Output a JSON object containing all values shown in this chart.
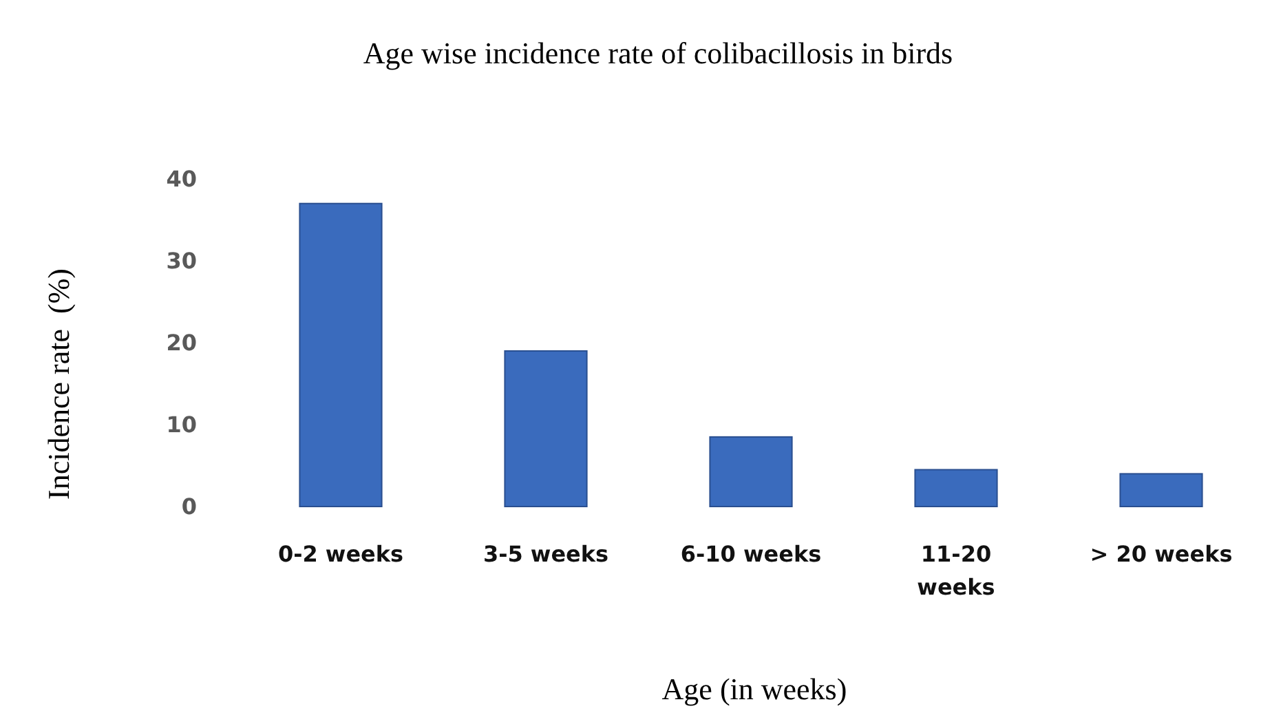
{
  "chart_data": {
    "type": "bar",
    "title": "Age wise incidence rate of colibacillosis in birds",
    "xlabel": "Age (in weeks)",
    "ylabel": "Incidence rate  (%)",
    "categories": [
      "0-2 weeks",
      "3-5 weeks",
      "6-10 weeks",
      "11-20 weeks",
      "> 20 weeks"
    ],
    "values": [
      37,
      19,
      8.5,
      4.5,
      4
    ],
    "color": "#3a6bbd",
    "ylim": [
      0,
      40
    ],
    "yticks": [
      0,
      10,
      20,
      30,
      40
    ],
    "grid": false
  }
}
